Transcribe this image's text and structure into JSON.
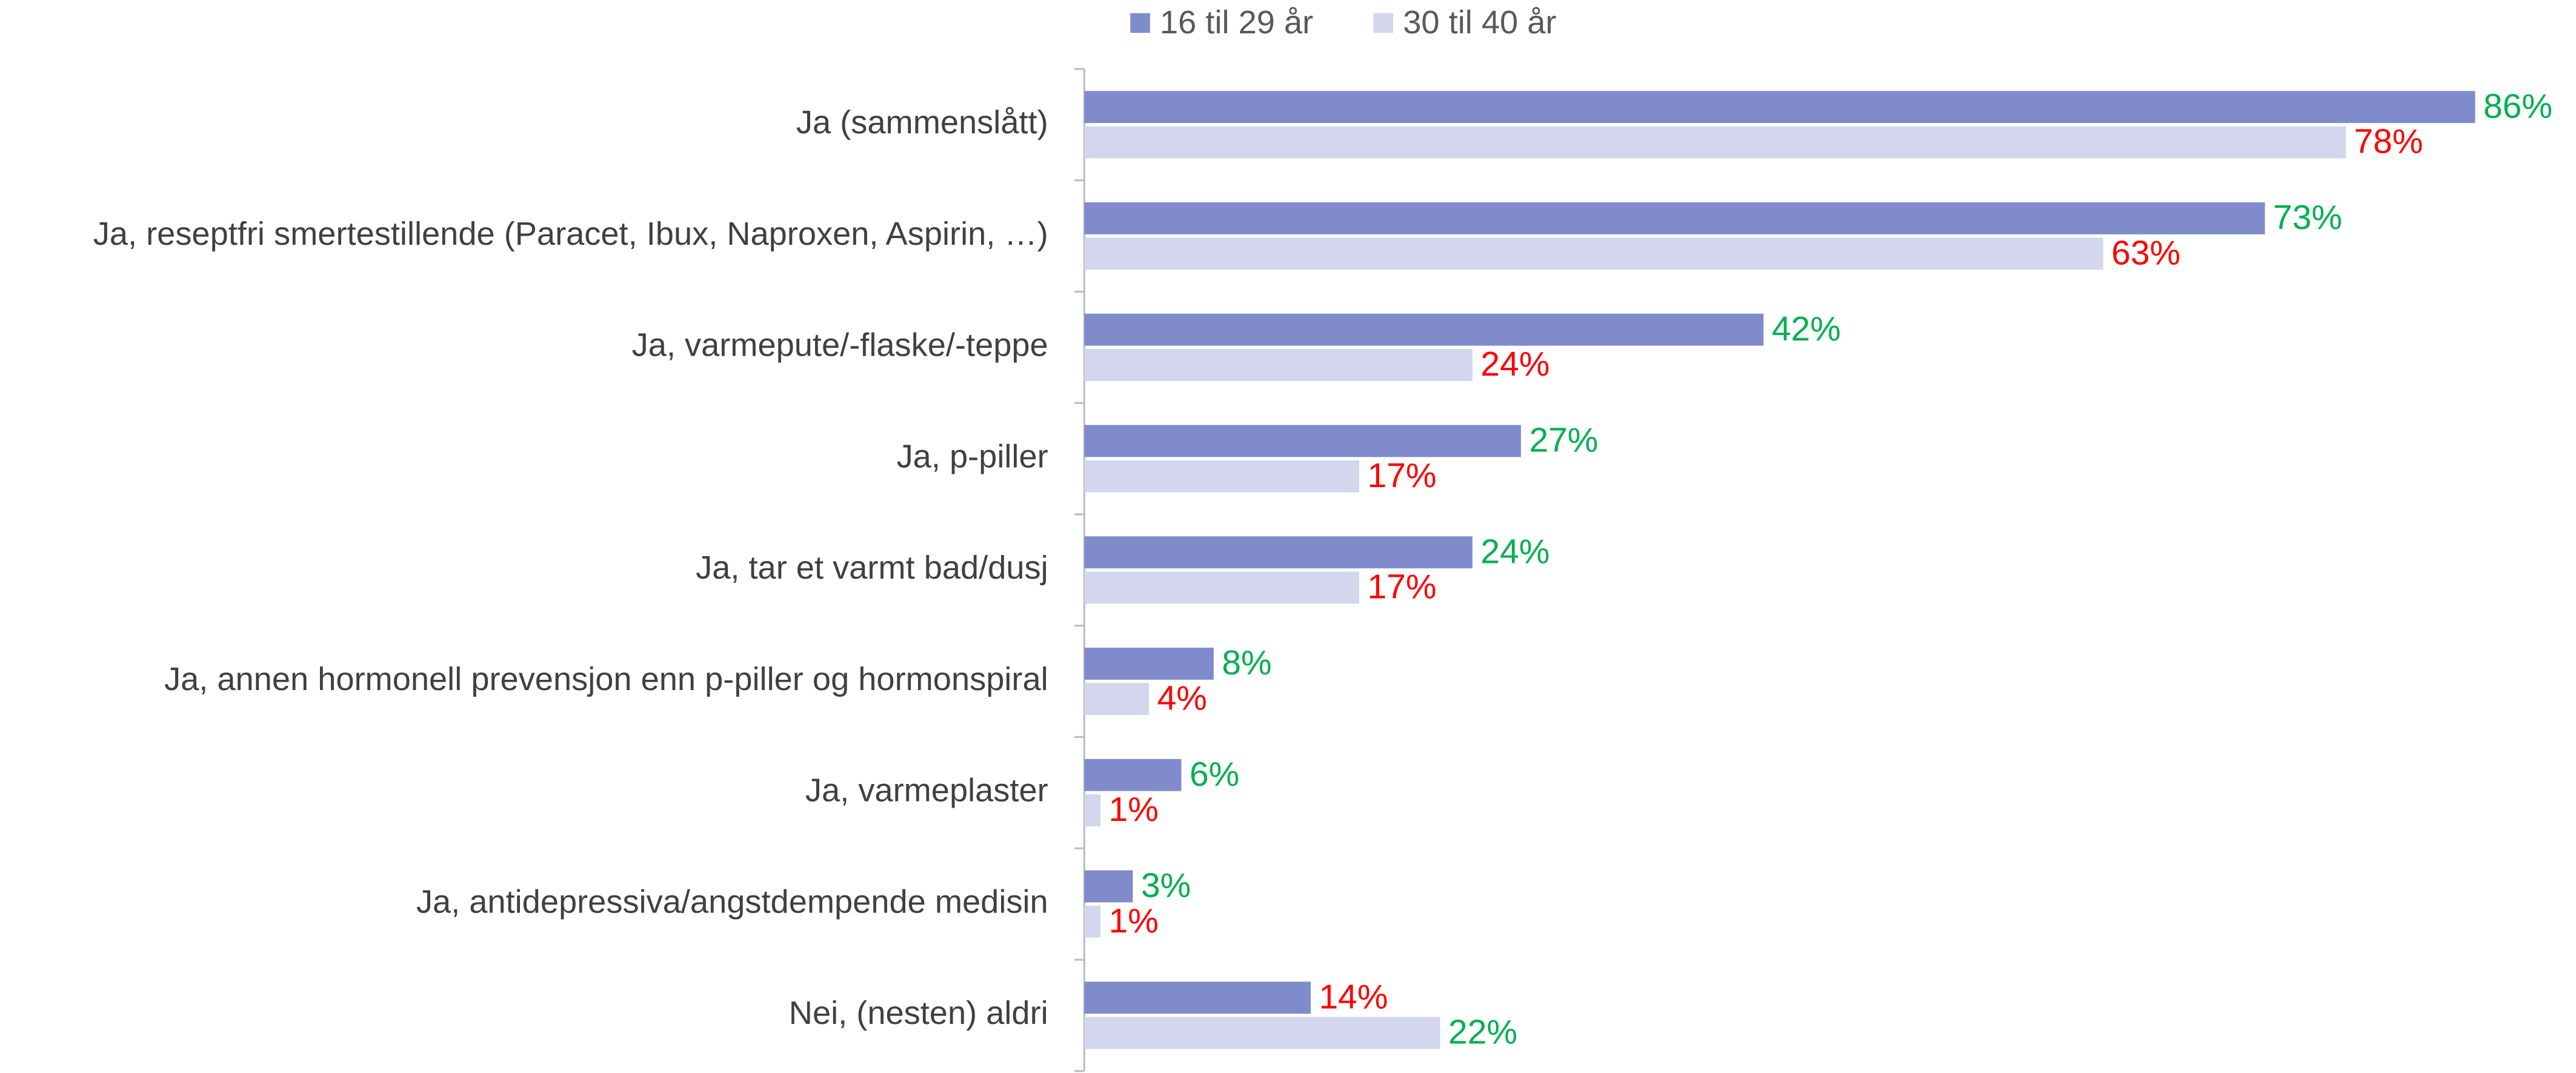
{
  "chart_data": {
    "type": "hbar",
    "categories": [
      "Ja (sammenslått)",
      "Ja, reseptfri  smertestillende (Paracet, Ibux, Naproxen, Aspirin, …)",
      "Ja, varmepute/-flaske/-teppe",
      "Ja, p-piller",
      "Ja, tar et varmt bad/dusj",
      "Ja, annen hormonell prevensjon enn p-piller og hormonspiral",
      "Ja, varmeplaster",
      "Ja, antidepressiva/angstdempende medisin",
      "Nei, (nesten) aldri"
    ],
    "series": [
      {
        "name": "16 til 29 år",
        "color": "#7f8bcb",
        "values": [
          86,
          73,
          42,
          27,
          24,
          8,
          6,
          3,
          14
        ],
        "value_labels": [
          "86%",
          "73%",
          "42%",
          "27%",
          "24%",
          "8%",
          "6%",
          "3%",
          "14%"
        ],
        "label_colors": [
          "#00b050",
          "#00b050",
          "#00b050",
          "#00b050",
          "#00b050",
          "#00b050",
          "#00b050",
          "#00b050",
          "#ff0000"
        ]
      },
      {
        "name": "30 til 40 år",
        "color": "#d3d6ec",
        "values": [
          78,
          63,
          24,
          17,
          17,
          4,
          1,
          1,
          22
        ],
        "value_labels": [
          "78%",
          "63%",
          "24%",
          "17%",
          "17%",
          "4%",
          "1%",
          "1%",
          "22%"
        ],
        "label_colors": [
          "#ff0000",
          "#ff0000",
          "#ff0000",
          "#ff0000",
          "#ff0000",
          "#ff0000",
          "#ff0000",
          "#ff0000",
          "#00b050"
        ]
      }
    ],
    "xlim": [
      0,
      90
    ],
    "legend": "top"
  }
}
